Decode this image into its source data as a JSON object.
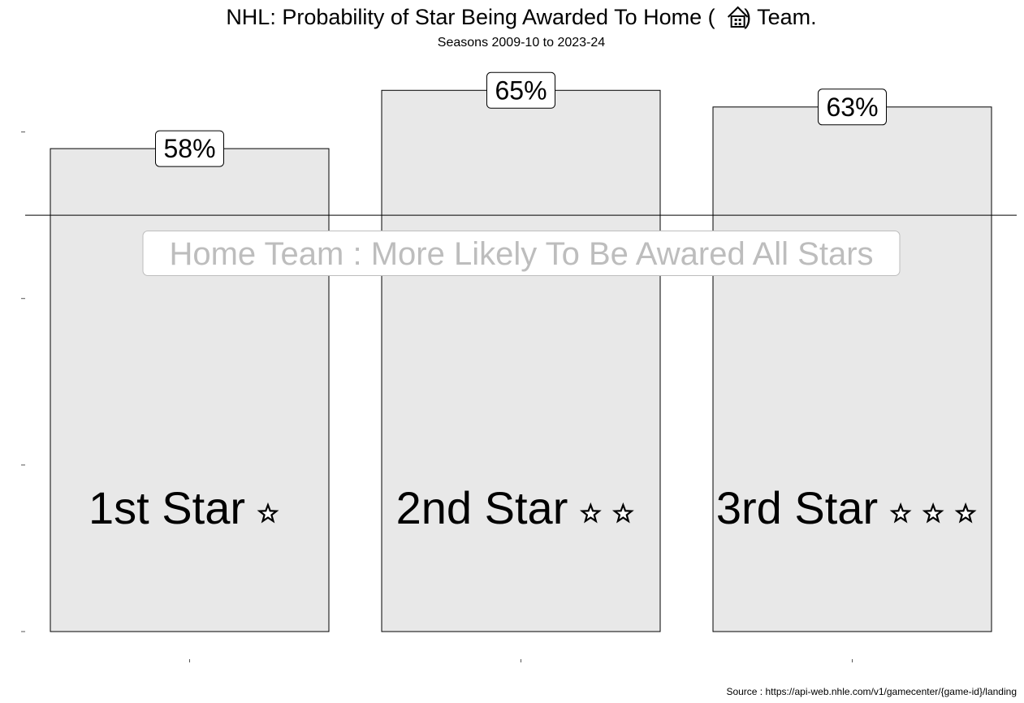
{
  "chart_data": {
    "type": "bar",
    "title": "NHL: Probability of Star Being Awarded To Home (",
    "title_icon": "house-icon",
    "title_suffix": ")  Team.",
    "subtitle": "Seasons 2009-10 to 2023-24",
    "categories": [
      "1st Star",
      "2nd Star",
      "3rd Star"
    ],
    "star_counts": [
      1,
      2,
      3
    ],
    "values": [
      0.58,
      0.65,
      0.63
    ],
    "value_labels": [
      "58%",
      "65%",
      "63%"
    ],
    "ylim": [
      0.0,
      0.7
    ],
    "reference_line": 0.5,
    "annotation": "Home Team : More Likely To Be Awared All Stars",
    "source": "Source :  https://api-web.nhle.com/v1/gamecenter/{game-id}/landing",
    "xlabel": "",
    "ylabel": "",
    "grid": false,
    "legend": "none",
    "colors": {
      "bar_fill": "#e8e8e8",
      "bar_stroke": "#000000",
      "annotation_text": "#bdbdbd"
    }
  }
}
